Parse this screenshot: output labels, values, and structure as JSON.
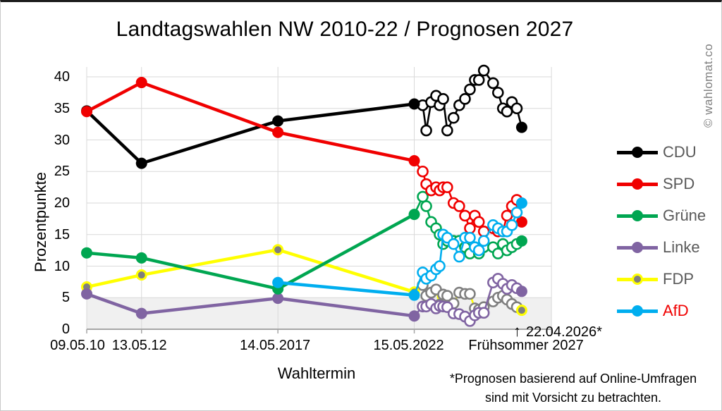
{
  "page": {
    "watermark": "© wahlomat.co"
  },
  "chart_data": {
    "type": "line",
    "title": "Landtagswahlen NW 2010-22 / Prognosen 2027",
    "xlabel": "Wahltermin",
    "ylabel": "Prozentpunkte",
    "ylim": [
      0,
      40
    ],
    "grid": true,
    "legend_position": "right",
    "threshold_band": {
      "from": 0,
      "to": 5,
      "color": "#f0f0f0"
    },
    "y_ticks": [
      0,
      5,
      10,
      15,
      20,
      25,
      30,
      35,
      40
    ],
    "x_ticks": [
      {
        "year": 2010.36,
        "label": "09.05.10"
      },
      {
        "year": 2012.37,
        "label": "13.05.12"
      },
      {
        "year": 2017.37,
        "label": "14.05.2017"
      },
      {
        "year": 2022.37,
        "label": "15.05.2022"
      },
      {
        "year": 2027.4,
        "label": "Frühsommer 2027"
      }
    ],
    "poll_x_years": [
      2022.68,
      2022.81,
      2022.99,
      2023.17,
      2023.3,
      2023.43,
      2023.58,
      2023.81,
      2024.02,
      2024.23,
      2024.41,
      2024.59,
      2024.74,
      2024.92,
      2025.26,
      2025.44,
      2025.62,
      2025.77,
      2025.95,
      2026.13
    ],
    "final_poll_year": 2026.31,
    "series": [
      {
        "name": "CDU",
        "color": "#000000",
        "label_color": "#595959",
        "elections": [
          [
            2010.36,
            34.6
          ],
          [
            2012.37,
            26.3
          ],
          [
            2017.37,
            33.0
          ],
          [
            2022.37,
            35.7
          ]
        ],
        "polls": [
          35.5,
          31.5,
          36,
          37,
          35.5,
          36.5,
          31.5,
          33.5,
          35.5,
          36.5,
          38,
          39.5,
          39.5,
          41,
          39,
          37.5,
          35,
          34.5,
          36,
          35
        ],
        "final": 32
      },
      {
        "name": "SPD",
        "color": "#f00000",
        "label_color": "#595959",
        "elections": [
          [
            2010.36,
            34.5
          ],
          [
            2012.37,
            39.1
          ],
          [
            2017.37,
            31.2
          ],
          [
            2022.37,
            26.7
          ]
        ],
        "polls": [
          25,
          23,
          22,
          22.5,
          22,
          22.5,
          22.5,
          20,
          19.5,
          18,
          16,
          18,
          17,
          15.5,
          16,
          15.5,
          15.5,
          18,
          19.5,
          20.5
        ],
        "final": 17
      },
      {
        "name": "Grüne",
        "color": "#00a651",
        "label_color": "#595959",
        "elections": [
          [
            2010.36,
            12.1
          ],
          [
            2012.37,
            11.3
          ],
          [
            2017.37,
            6.4
          ],
          [
            2022.37,
            18.2
          ]
        ],
        "polls": [
          21,
          19.5,
          17,
          16,
          15,
          13.5,
          14,
          14,
          14,
          13,
          12,
          13,
          12,
          13,
          13,
          12,
          13.5,
          12.5,
          13,
          13.5
        ],
        "final": 14
      },
      {
        "name": "Linke",
        "color": "#8064a2",
        "label_color": "#595959",
        "elections": [
          [
            2010.36,
            5.6
          ],
          [
            2012.37,
            2.5
          ],
          [
            2017.37,
            4.9
          ],
          [
            2022.37,
            2.1
          ]
        ],
        "polls": [
          3.6,
          3.6,
          4,
          3.3,
          3.7,
          3.6,
          3.5,
          2.5,
          2.4,
          2,
          1.3,
          2.2,
          2.6,
          2.6,
          7.4,
          8,
          7.2,
          6.4,
          7,
          6.5
        ],
        "final": 6
      },
      {
        "name": "FDP",
        "color": "#ffff00",
        "marker_color": "#7f7f7f",
        "label_color": "#595959",
        "elections": [
          [
            2010.36,
            6.7
          ],
          [
            2012.37,
            8.6
          ],
          [
            2017.37,
            12.6
          ],
          [
            2022.37,
            5.9
          ]
        ],
        "polls": [
          7,
          5.3,
          5.8,
          6.3,
          3.9,
          5.5,
          5.3,
          4.1,
          5.8,
          5.6,
          5.6,
          3.3,
          3.1,
          3.5,
          4.4,
          5,
          5.3,
          4.7,
          4,
          3.5
        ],
        "final": 3
      },
      {
        "name": "AfD",
        "color": "#00aeef",
        "label_color": "#f00000",
        "elections": [
          [
            2017.37,
            7.4
          ],
          [
            2022.37,
            5.4
          ]
        ],
        "polls": [
          9,
          8,
          8.5,
          9.5,
          10,
          15,
          14.5,
          13.5,
          11.5,
          14.5,
          14.5,
          13,
          12.5,
          14,
          16.5,
          16,
          15.5,
          15.5,
          16.5,
          18.5
        ],
        "final": 20
      }
    ],
    "annotation": {
      "arrow": "↑",
      "label": "22.04.2026*"
    },
    "footnote": [
      "*Prognosen basierend auf Online-Umfragen",
      "sind mit Vorsicht zu betrachten."
    ]
  }
}
